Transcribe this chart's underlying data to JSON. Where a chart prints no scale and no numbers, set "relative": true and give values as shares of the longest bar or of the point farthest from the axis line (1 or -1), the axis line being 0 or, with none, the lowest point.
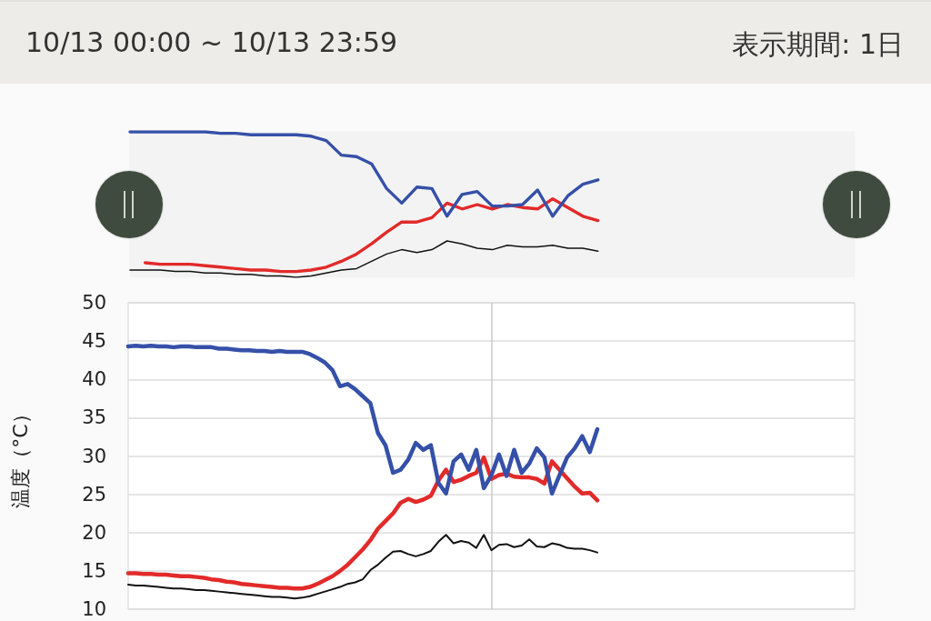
{
  "chart_data": [
    {
      "type": "line",
      "relative": true,
      "annotations": [
        "10/13 00:00 ~ 10/13 23:59",
        "表示期間: 1日"
      ],
      "marker": "none",
      "line_style": "solid",
      "categories": [
        null,
        null,
        null,
        null,
        null,
        null,
        null,
        null,
        null,
        null,
        null,
        null,
        null,
        null,
        null,
        null,
        null,
        null,
        null,
        null,
        null,
        null,
        null,
        null,
        null,
        null,
        null,
        null,
        null,
        null,
        null,
        null,
        null,
        null,
        null,
        null,
        null,
        null,
        null,
        null,
        null,
        null,
        null,
        null,
        null,
        null,
        null,
        null,
        null
      ],
      "series": [
        {
          "color": "#3550a8",
          "values": [
            1,
            1,
            1,
            1,
            1,
            1,
            0.99,
            0.99,
            0.98,
            0.98,
            0.98,
            0.98,
            0.97,
            0.94,
            0.84,
            0.83,
            0.78,
            0.61,
            0.51,
            0.62,
            0.61,
            0.42,
            0.57,
            0.59,
            0.49,
            0.49,
            0.5,
            0.6,
            0.42,
            0.56,
            0.64,
            0.67,
            null,
            null,
            null,
            null,
            null,
            null,
            null,
            null,
            null,
            null,
            null,
            null,
            null,
            null,
            null,
            null,
            null
          ]
        },
        {
          "color": "#e22a2a",
          "values": [
            null,
            0.1,
            0.09,
            0.09,
            0.09,
            0.08,
            0.07,
            0.06,
            0.05,
            0.05,
            0.04,
            0.04,
            0.05,
            0.07,
            0.11,
            0.16,
            0.23,
            0.31,
            0.38,
            0.38,
            0.41,
            0.51,
            0.47,
            0.5,
            0.47,
            0.5,
            0.48,
            0.47,
            0.54,
            0.48,
            0.42,
            0.39,
            null,
            null,
            null,
            null,
            null,
            null,
            null,
            null,
            null,
            null,
            null,
            null,
            null,
            null,
            null,
            null,
            null
          ]
        },
        {
          "color": "#111111",
          "values": [
            0.05,
            0.05,
            0.05,
            0.04,
            0.04,
            0.03,
            0.03,
            0.02,
            0.02,
            0.01,
            0.01,
            0,
            0.01,
            0.03,
            0.05,
            0.06,
            0.11,
            0.16,
            0.19,
            0.17,
            0.19,
            0.25,
            0.23,
            0.2,
            0.19,
            0.22,
            0.21,
            0.21,
            0.22,
            0.2,
            0.2,
            0.18,
            null,
            null,
            null,
            null,
            null,
            null,
            null,
            null,
            null,
            null,
            null,
            null,
            null,
            null,
            null,
            null,
            null
          ]
        }
      ]
    },
    {
      "type": "line",
      "ylabel": "温度（°C）",
      "ylim": [
        10,
        50
      ],
      "yticks": [
        10,
        15,
        20,
        25,
        30,
        35,
        40,
        45,
        50
      ],
      "grid": true,
      "marker": "none",
      "line_style": "solid",
      "categories": [
        null,
        null,
        null,
        null,
        null,
        null,
        null,
        null,
        null,
        null,
        null,
        null,
        null,
        null,
        null,
        null,
        null,
        null,
        null,
        null,
        null,
        null,
        null,
        null,
        null,
        null,
        null,
        null,
        null,
        null,
        null,
        null,
        null,
        null,
        null,
        null,
        null,
        null,
        null,
        null,
        null,
        null,
        null,
        null,
        null,
        null,
        null,
        null,
        null,
        null,
        null,
        null,
        null,
        null,
        null,
        null,
        null,
        null,
        null,
        null,
        null,
        null,
        null,
        null,
        null,
        null,
        null,
        null,
        null,
        null,
        null,
        null,
        null,
        null,
        null,
        null,
        null,
        null,
        null,
        null,
        null,
        null,
        null,
        null,
        null,
        null,
        null,
        null,
        null,
        null,
        null,
        null,
        null,
        null,
        null,
        null,
        null
      ],
      "series": [
        {
          "color": "#3550a8",
          "values": [
            44.3,
            44.4,
            44.3,
            44.4,
            44.3,
            44.3,
            44.2,
            44.3,
            44.3,
            44.2,
            44.2,
            44.2,
            44.0,
            44.0,
            43.9,
            43.8,
            43.8,
            43.7,
            43.7,
            43.6,
            43.7,
            43.6,
            43.6,
            43.6,
            43.3,
            42.8,
            42.2,
            41.2,
            39.1,
            39.4,
            38.7,
            37.8,
            36.9,
            33.0,
            31.4,
            27.8,
            28.2,
            29.5,
            31.7,
            30.8,
            31.4,
            26.5,
            25.1,
            29.3,
            30.2,
            28.2,
            30.8,
            25.8,
            27.5,
            30.2,
            27.4,
            30.8,
            27.8,
            29.0,
            31.0,
            29.8,
            25.1,
            27.5,
            29.8,
            31.0,
            32.6,
            30.5,
            33.5,
            null,
            null,
            null,
            null,
            null,
            null,
            null,
            null,
            null,
            null,
            null,
            null,
            null,
            null,
            null,
            null,
            null,
            null,
            null,
            null,
            null,
            null,
            null,
            null,
            null,
            null,
            null,
            null,
            null,
            null,
            null,
            null,
            null,
            null
          ]
        },
        {
          "color": "#e22a2a",
          "values": [
            14.7,
            14.7,
            14.6,
            14.6,
            14.5,
            14.5,
            14.4,
            14.3,
            14.3,
            14.2,
            14.1,
            13.9,
            13.8,
            13.6,
            13.5,
            13.3,
            13.2,
            13.1,
            13.0,
            12.9,
            12.8,
            12.8,
            12.7,
            12.7,
            12.9,
            13.3,
            13.8,
            14.3,
            15.0,
            15.8,
            16.8,
            17.8,
            19.0,
            20.5,
            21.5,
            22.5,
            23.9,
            24.4,
            24.0,
            24.3,
            24.8,
            26.8,
            28.2,
            26.6,
            26.9,
            27.4,
            27.8,
            29.8,
            27.0,
            27.5,
            27.7,
            27.3,
            27.2,
            27.2,
            27.0,
            26.4,
            29.3,
            28.2,
            27.1,
            26.0,
            25.1,
            25.2,
            24.2,
            null,
            null,
            null,
            null,
            null,
            null,
            null,
            null,
            null,
            null,
            null,
            null,
            null,
            null,
            null,
            null,
            null,
            null,
            null,
            null,
            null,
            null,
            null,
            null,
            null,
            null,
            null,
            null,
            null,
            null,
            null,
            null,
            null,
            null
          ]
        },
        {
          "color": "#111111",
          "values": [
            13.2,
            13.1,
            13.1,
            13.0,
            12.9,
            12.8,
            12.7,
            12.7,
            12.6,
            12.5,
            12.5,
            12.4,
            12.3,
            12.2,
            12.1,
            12.0,
            11.9,
            11.8,
            11.7,
            11.6,
            11.6,
            11.5,
            11.4,
            11.5,
            11.7,
            12.0,
            12.3,
            12.6,
            12.9,
            13.3,
            13.5,
            13.9,
            15.1,
            15.8,
            16.7,
            17.5,
            17.6,
            17.2,
            16.9,
            17.2,
            17.6,
            18.8,
            19.7,
            18.6,
            18.9,
            18.7,
            18.0,
            19.7,
            17.7,
            18.4,
            18.5,
            18.1,
            18.3,
            19.1,
            18.2,
            18.1,
            18.6,
            18.4,
            18.0,
            17.9,
            17.9,
            17.7,
            17.4,
            null,
            null,
            null,
            null,
            null,
            null,
            null,
            null,
            null,
            null,
            null,
            null,
            null,
            null,
            null,
            null,
            null,
            null,
            null,
            null,
            null,
            null,
            null,
            null,
            null,
            null,
            null,
            null,
            null,
            null,
            null,
            null,
            null,
            null
          ]
        }
      ]
    }
  ]
}
